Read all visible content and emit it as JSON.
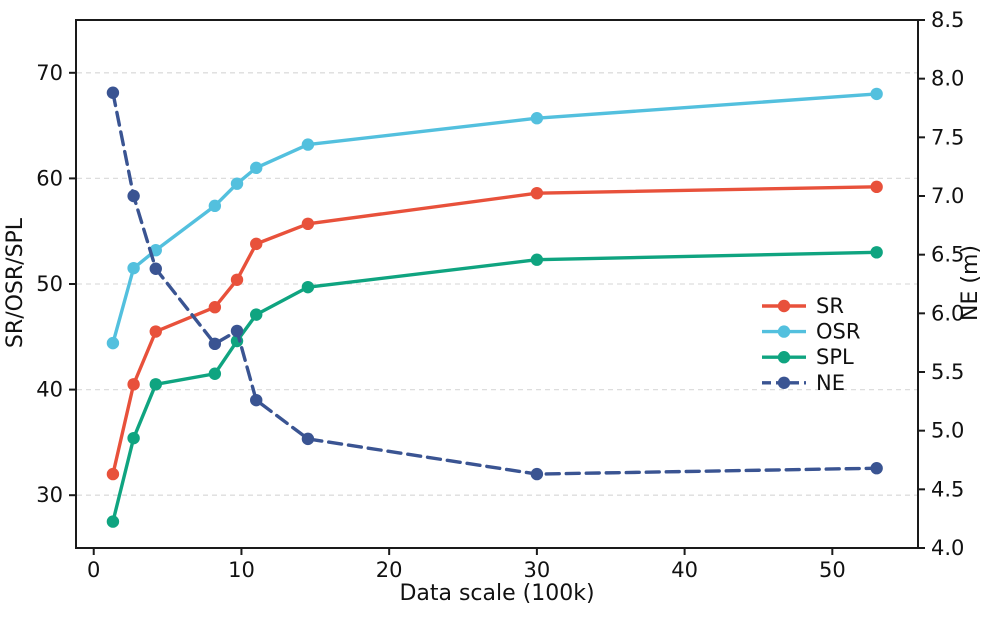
{
  "chart_data": {
    "type": "line",
    "title": "",
    "xlabel": "Data scale (100k)",
    "ylabel_left": "SR/OSR/SPL",
    "ylabel_right": "NE (m)",
    "x": [
      1.3,
      2.7,
      4.2,
      8.2,
      9.7,
      11,
      14.5,
      30,
      53
    ],
    "series": [
      {
        "name": "SR",
        "axis": "left",
        "color": "#E8513B",
        "line_style": "solid",
        "marker": "circle",
        "values": [
          32.0,
          40.5,
          45.5,
          47.8,
          50.4,
          53.8,
          55.7,
          58.6,
          59.2
        ]
      },
      {
        "name": "OSR",
        "axis": "left",
        "color": "#53C0DE",
        "line_style": "solid",
        "marker": "circle",
        "values": [
          44.4,
          51.5,
          53.2,
          57.4,
          59.5,
          61.0,
          63.2,
          65.7,
          68.0
        ]
      },
      {
        "name": "SPL",
        "axis": "left",
        "color": "#0FA480",
        "line_style": "solid",
        "marker": "circle",
        "values": [
          27.5,
          35.4,
          40.5,
          41.5,
          44.6,
          47.1,
          49.7,
          52.3,
          53.0
        ]
      },
      {
        "name": "NE",
        "axis": "right",
        "color": "#3A5492",
        "line_style": "dashed",
        "marker": "circle",
        "values": [
          7.88,
          7.0,
          6.38,
          5.74,
          5.85,
          5.26,
          4.93,
          4.63,
          4.68
        ]
      }
    ],
    "x_ticks": [
      0,
      10,
      20,
      30,
      40,
      50
    ],
    "y_ticks_left": [
      30,
      40,
      50,
      60,
      70
    ],
    "y_ticks_right": [
      "4.0",
      "4.5",
      "5.0",
      "5.5",
      "6.0",
      "6.5",
      "7.0",
      "7.5",
      "8.0",
      "8.5"
    ],
    "xlim": [
      -1.2,
      55.8
    ],
    "ylim_left": [
      25,
      75
    ],
    "ylim_right": [
      4.0,
      8.5
    ],
    "grid": "horizontal dashed gridlines at left-axis ticks",
    "legend": {
      "position": "center-right",
      "frame": false
    },
    "colors": {
      "left_axis_label": "#77A29A",
      "right_axis_label": "#3C5A9C",
      "gridline": "#DDDDDD",
      "spine": "#1A1A1A",
      "tick_text": "#111111",
      "background": "#FFFFFF"
    }
  }
}
